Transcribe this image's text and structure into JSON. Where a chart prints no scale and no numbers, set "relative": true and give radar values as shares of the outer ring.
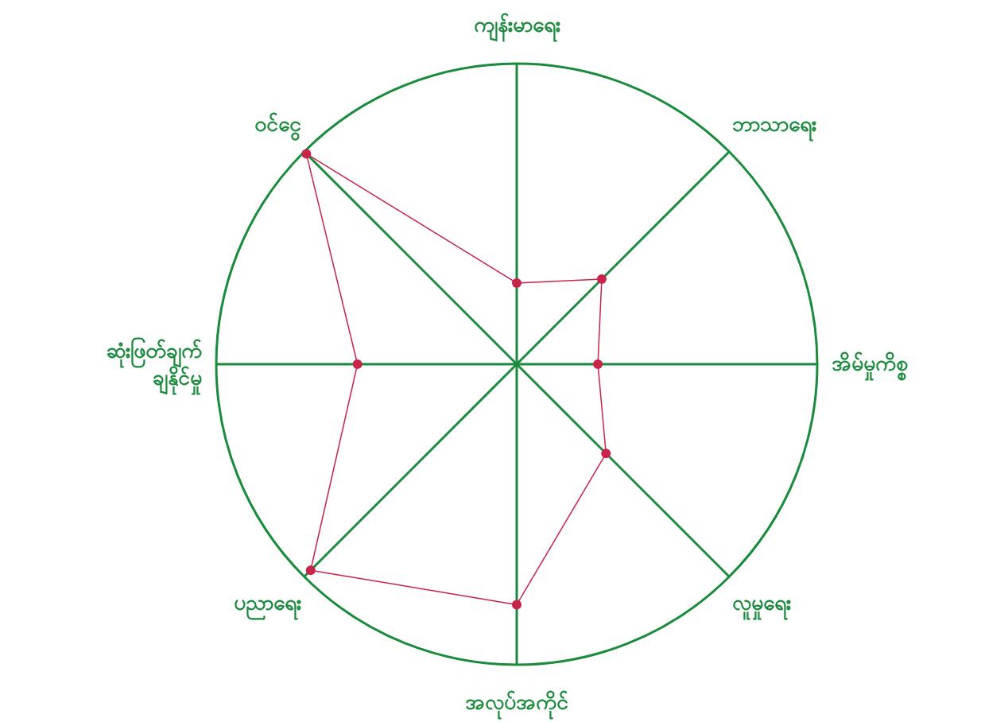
{
  "chart_data": {
    "type": "radar",
    "relative": true,
    "marker": "circle",
    "categories": [
      "ကျန်းမာရေး",
      "ဘာသာရေး",
      "အိမ်မှုကိစ္စ",
      "လူမှုရေး",
      "အလုပ်အကိုင်",
      "ပညာရေး",
      "ဆုံးဖြတ်ချက်\nချနိုင်မှု",
      "ဝင်ငွေ"
    ],
    "series": [
      {
        "color": "#c8234a",
        "values": [
          0.27,
          0.4,
          0.27,
          0.42,
          0.8,
          0.97,
          0.53,
          0.99
        ]
      }
    ]
  }
}
